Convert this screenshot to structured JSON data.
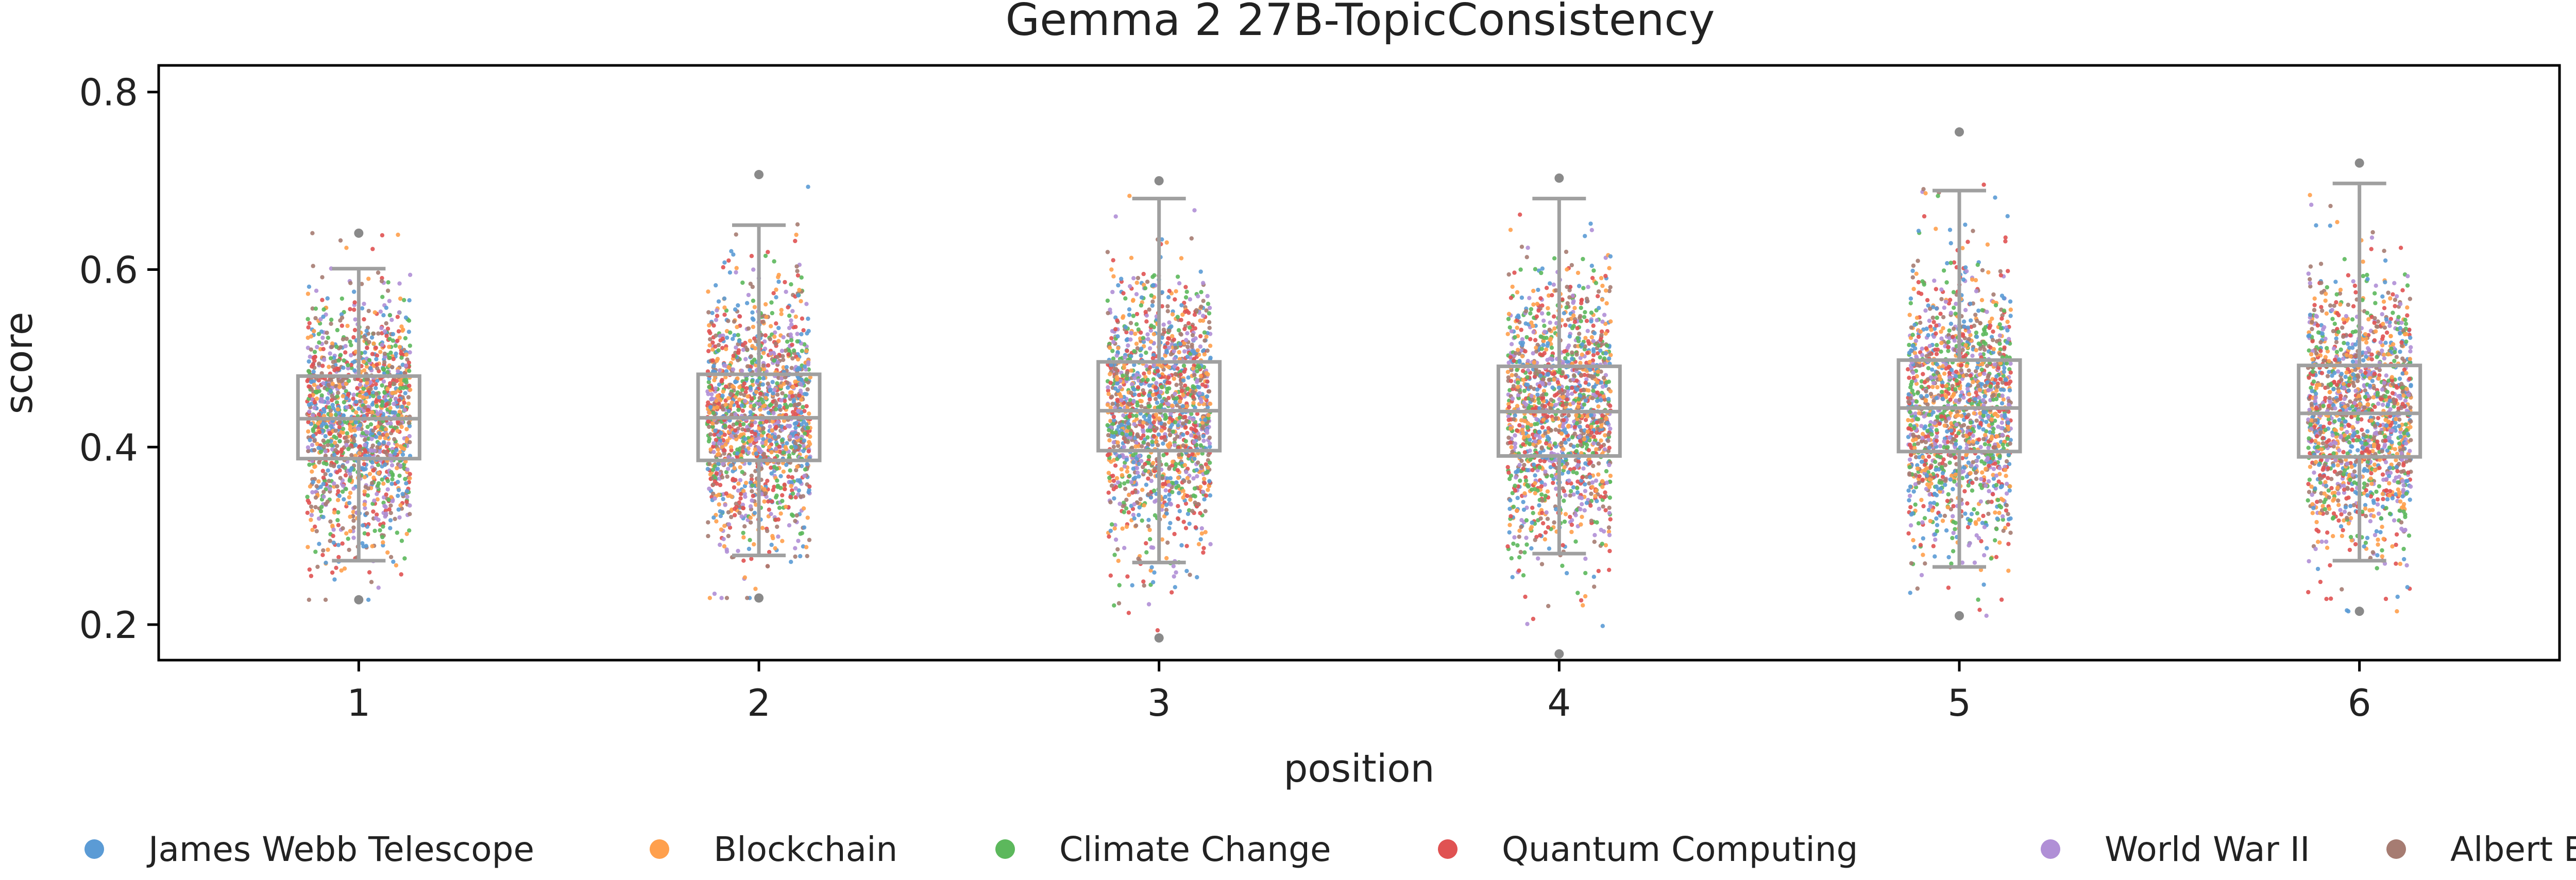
{
  "chart_data": {
    "type": "scatter",
    "title": "Gemma 2 27B-TopicConsistency",
    "xlabel": "position",
    "ylabel": "score",
    "categories": [
      "1",
      "2",
      "3",
      "4",
      "5",
      "6"
    ],
    "yticks": [
      "0.2",
      "0.4",
      "0.6",
      "0.8"
    ],
    "ylim": [
      0.16,
      0.83
    ],
    "grid": false,
    "legend_position": "bottom",
    "series": [
      {
        "name": "James Webb Telescope",
        "color": "#5b9bd5"
      },
      {
        "name": "Blockchain",
        "color": "#ffa04d"
      },
      {
        "name": "Climate Change",
        "color": "#5cb85c"
      },
      {
        "name": "Quantum Computing",
        "color": "#e05252"
      },
      {
        "name": "World War II",
        "color": "#b08fd6"
      },
      {
        "name": "Albert Einstein",
        "color": "#a67c72"
      }
    ],
    "boxes": [
      {
        "position": "1",
        "whisker_low": 0.272,
        "q1": 0.387,
        "median": 0.432,
        "q3": 0.48,
        "whisker_high": 0.601,
        "min": 0.228,
        "max": 0.641
      },
      {
        "position": "2",
        "whisker_low": 0.278,
        "q1": 0.385,
        "median": 0.433,
        "q3": 0.482,
        "whisker_high": 0.65,
        "min": 0.23,
        "max": 0.707
      },
      {
        "position": "3",
        "whisker_low": 0.27,
        "q1": 0.396,
        "median": 0.441,
        "q3": 0.496,
        "whisker_high": 0.68,
        "min": 0.185,
        "max": 0.7
      },
      {
        "position": "4",
        "whisker_low": 0.28,
        "q1": 0.39,
        "median": 0.44,
        "q3": 0.491,
        "whisker_high": 0.68,
        "min": 0.167,
        "max": 0.703
      },
      {
        "position": "5",
        "whisker_low": 0.265,
        "q1": 0.395,
        "median": 0.444,
        "q3": 0.498,
        "whisker_high": 0.689,
        "min": 0.21,
        "max": 0.755
      },
      {
        "position": "6",
        "whisker_low": 0.272,
        "q1": 0.389,
        "median": 0.438,
        "q3": 0.492,
        "whisker_high": 0.697,
        "min": 0.215,
        "max": 0.72
      }
    ],
    "points_per_position": 1500
  }
}
